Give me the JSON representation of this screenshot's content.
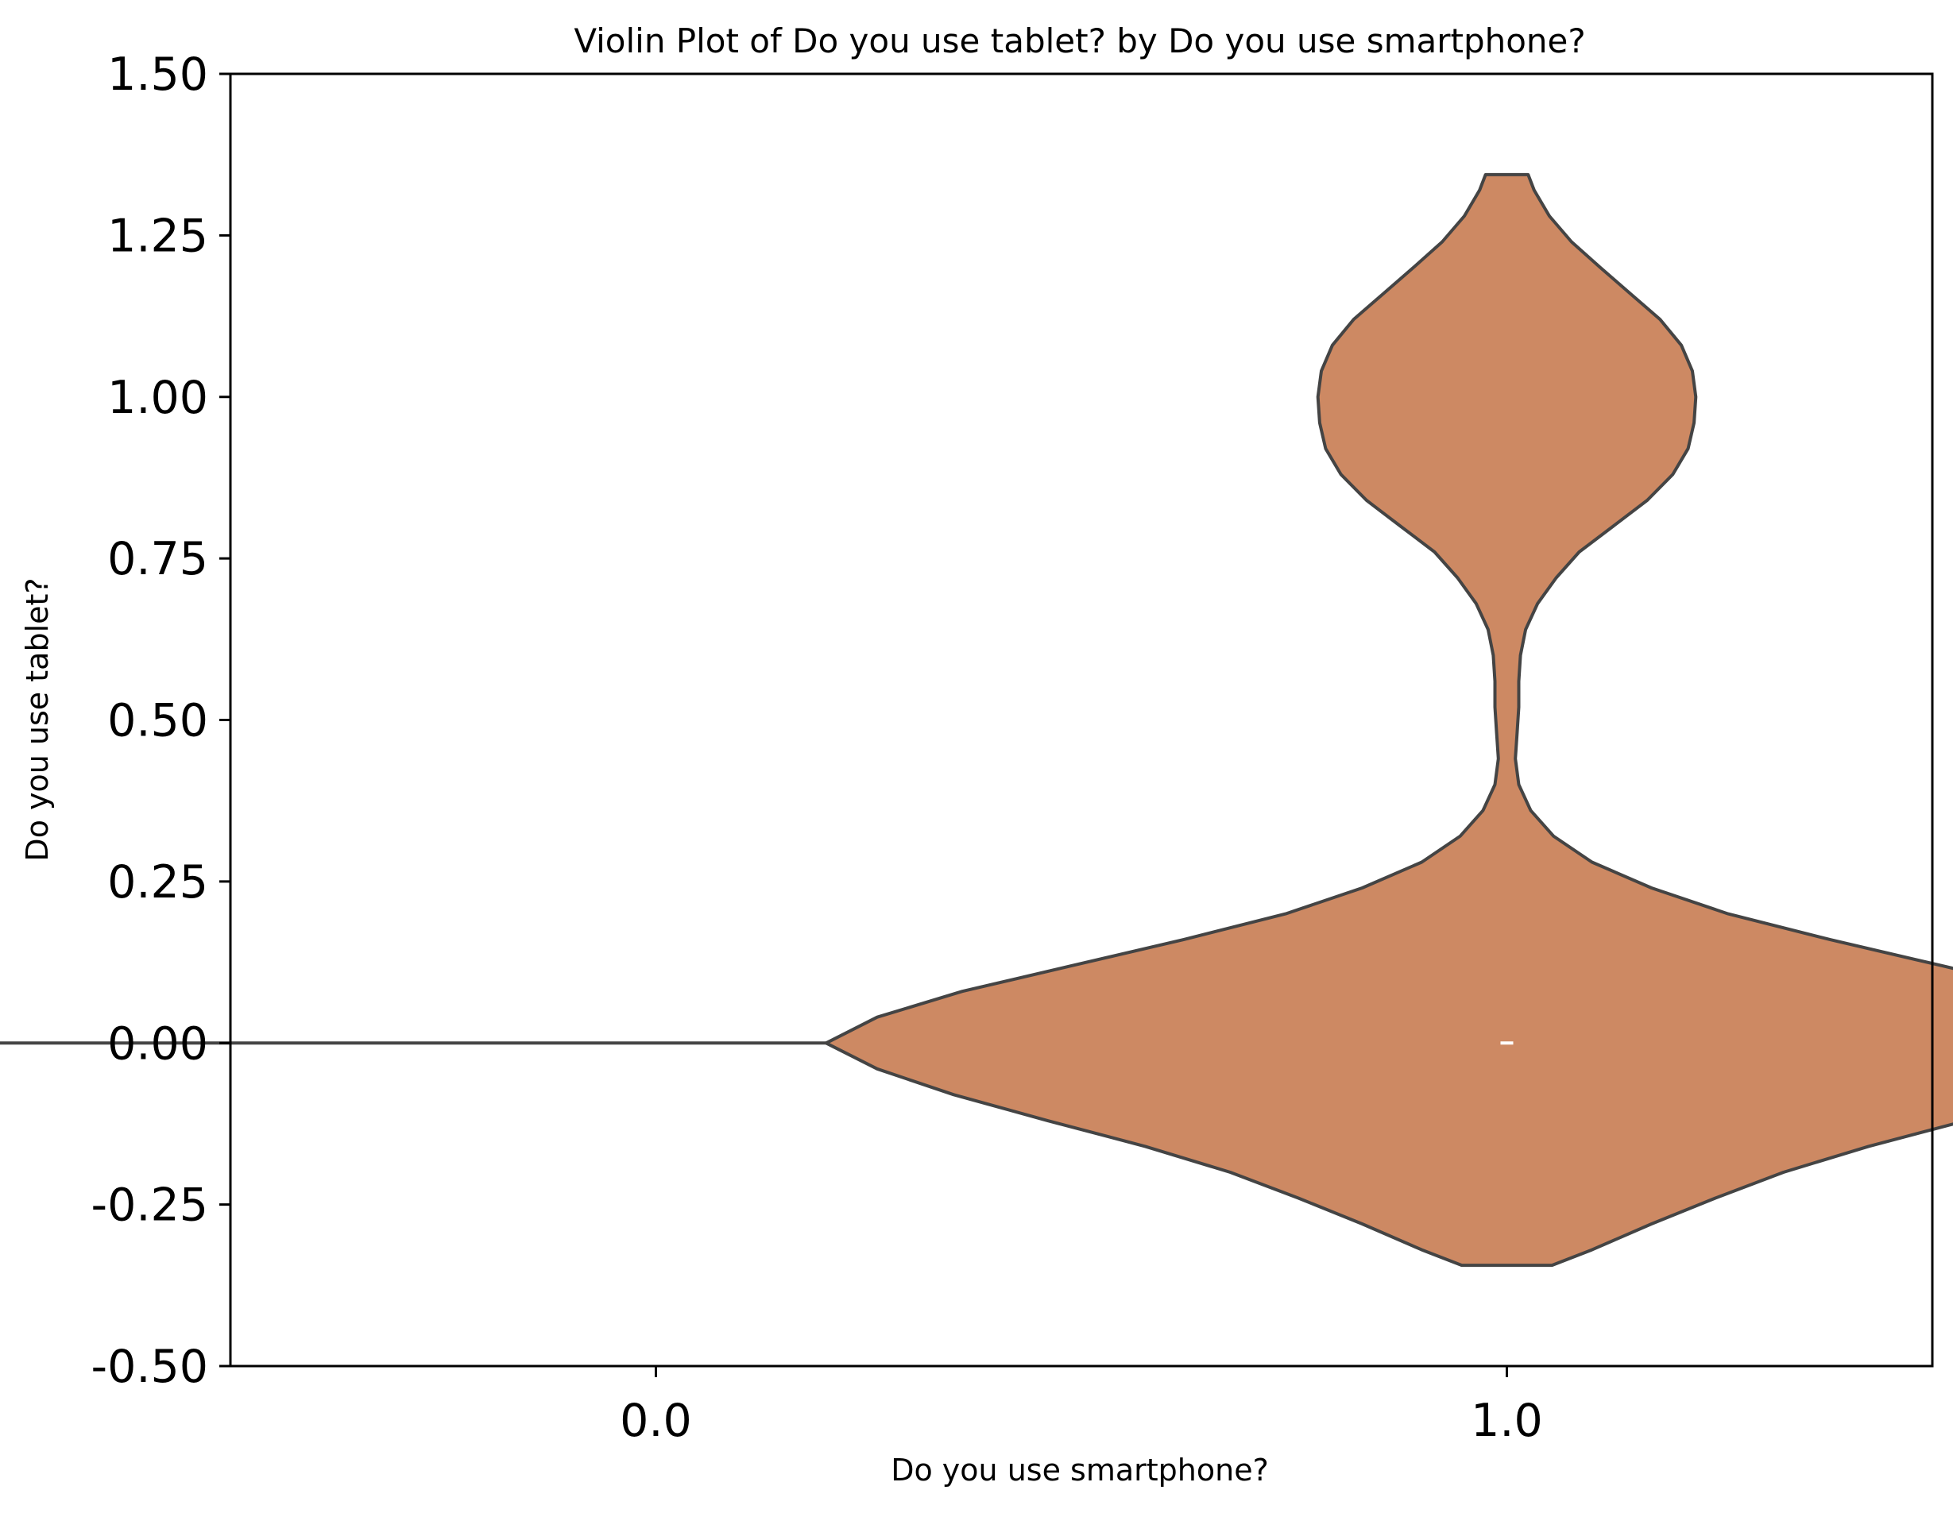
{
  "chart_data": {
    "type": "violin",
    "title": "Violin Plot of Do you use tablet? by Do you use smartphone?",
    "xlabel": "Do you use smartphone?",
    "ylabel": "Do you use tablet?",
    "categories": [
      "0.0",
      "1.0"
    ],
    "ylim": [
      -0.5,
      1.5
    ],
    "yticks": [
      -0.5,
      -0.25,
      0.0,
      0.25,
      0.5,
      0.75,
      1.0,
      1.25,
      1.5
    ],
    "ytick_labels": [
      "-0.50",
      "-0.25",
      "0.00",
      "0.25",
      "0.50",
      "0.75",
      "1.00",
      "1.25",
      "1.50"
    ],
    "grid": false,
    "colors": {
      "fill": "#cd8963",
      "edge": "#444444",
      "median": "#ffffff"
    },
    "violins": [
      {
        "category": "0.0",
        "degenerate_value": 0.0,
        "half_width": 0.8,
        "median": 0.0
      },
      {
        "category": "1.0",
        "median": 0.0,
        "profile": [
          [
            -0.344,
            0.053
          ],
          [
            -0.32,
            0.1
          ],
          [
            -0.28,
            0.17
          ],
          [
            -0.24,
            0.245
          ],
          [
            -0.2,
            0.325
          ],
          [
            -0.16,
            0.425
          ],
          [
            -0.12,
            0.54
          ],
          [
            -0.08,
            0.65
          ],
          [
            -0.04,
            0.74
          ],
          [
            0.0,
            0.8
          ],
          [
            0.04,
            0.74
          ],
          [
            0.08,
            0.64
          ],
          [
            0.12,
            0.51
          ],
          [
            0.16,
            0.38
          ],
          [
            0.2,
            0.26
          ],
          [
            0.24,
            0.17
          ],
          [
            0.28,
            0.1
          ],
          [
            0.32,
            0.055
          ],
          [
            0.36,
            0.028
          ],
          [
            0.4,
            0.014
          ],
          [
            0.44,
            0.01
          ],
          [
            0.48,
            0.012
          ],
          [
            0.52,
            0.014
          ],
          [
            0.56,
            0.014
          ],
          [
            0.6,
            0.016
          ],
          [
            0.64,
            0.022
          ],
          [
            0.68,
            0.036
          ],
          [
            0.72,
            0.058
          ],
          [
            0.76,
            0.085
          ],
          [
            0.8,
            0.125
          ],
          [
            0.84,
            0.165
          ],
          [
            0.88,
            0.195
          ],
          [
            0.92,
            0.213
          ],
          [
            0.96,
            0.22
          ],
          [
            1.0,
            0.222
          ],
          [
            1.04,
            0.218
          ],
          [
            1.08,
            0.205
          ],
          [
            1.12,
            0.18
          ],
          [
            1.16,
            0.145
          ],
          [
            1.2,
            0.11
          ],
          [
            1.24,
            0.076
          ],
          [
            1.28,
            0.05
          ],
          [
            1.32,
            0.032
          ],
          [
            1.344,
            0.025
          ]
        ]
      }
    ]
  }
}
